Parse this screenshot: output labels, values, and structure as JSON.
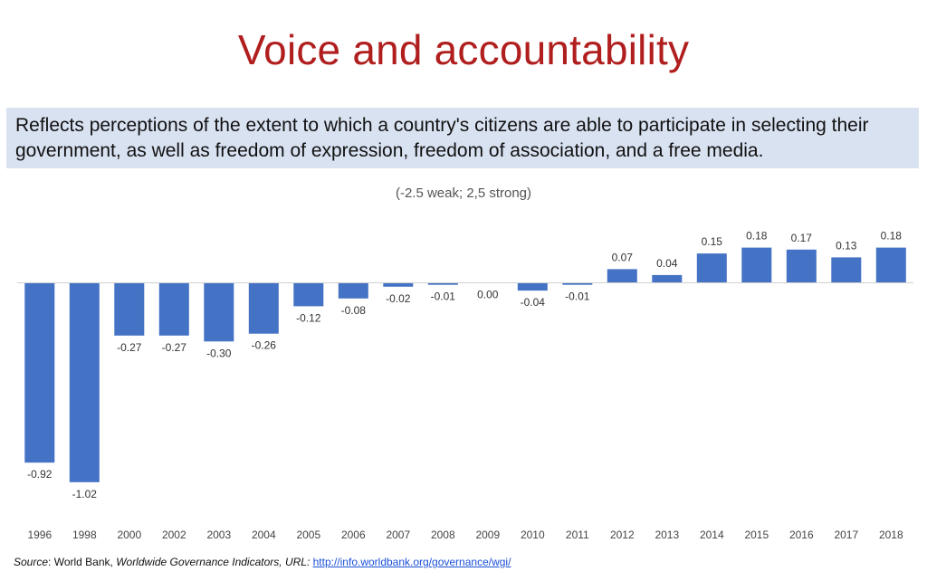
{
  "slide": {
    "title": "Voice and accountability",
    "description": "Reflects perceptions of the extent to which a country's citizens are able to participate in selecting their government, as well as freedom of expression, freedom of association, and a free media.",
    "scale_note": "(-2.5 weak; 2,5 strong)",
    "source": {
      "label": "Source",
      "separator": ": ",
      "org": "World Bank, ",
      "publication": "Worldwide Governance Indicators, URL: ",
      "url": "http://info.worldbank.org/governance/wgi/"
    }
  },
  "colors": {
    "title": "#b01e1e",
    "description_background": "#d9e2f1",
    "bar": "#4472c4",
    "axis": "#d0d0d0",
    "link": "#1a4fd6"
  },
  "chart_data": {
    "type": "bar",
    "title": "",
    "subtitle": "(-2.5 weak; 2,5 strong)",
    "xlabel": "",
    "ylabel": "",
    "categories": [
      "1996",
      "1998",
      "2000",
      "2002",
      "2003",
      "2004",
      "2005",
      "2006",
      "2007",
      "2008",
      "2009",
      "2010",
      "2011",
      "2012",
      "2013",
      "2014",
      "2015",
      "2016",
      "2017",
      "2018"
    ],
    "values": [
      -0.92,
      -1.02,
      -0.27,
      -0.27,
      -0.3,
      -0.26,
      -0.12,
      -0.08,
      -0.02,
      -0.01,
      0.0,
      -0.04,
      -0.01,
      0.07,
      0.04,
      0.15,
      0.18,
      0.17,
      0.13,
      0.18
    ],
    "value_labels": [
      "-0.92",
      "-1.02",
      "-0.27",
      "-0.27",
      "-0.30",
      "-0.26",
      "-0.12",
      "-0.08",
      "-0.02",
      "-0.01",
      "0.00",
      "-0.04",
      "-0.01",
      "0.07",
      "0.04",
      "0.15",
      "0.18",
      "0.17",
      "0.13",
      "0.18"
    ],
    "ylim": [
      -1.02,
      0.18
    ],
    "grid": false,
    "legend": "none",
    "bar_color": "#4472c4"
  }
}
